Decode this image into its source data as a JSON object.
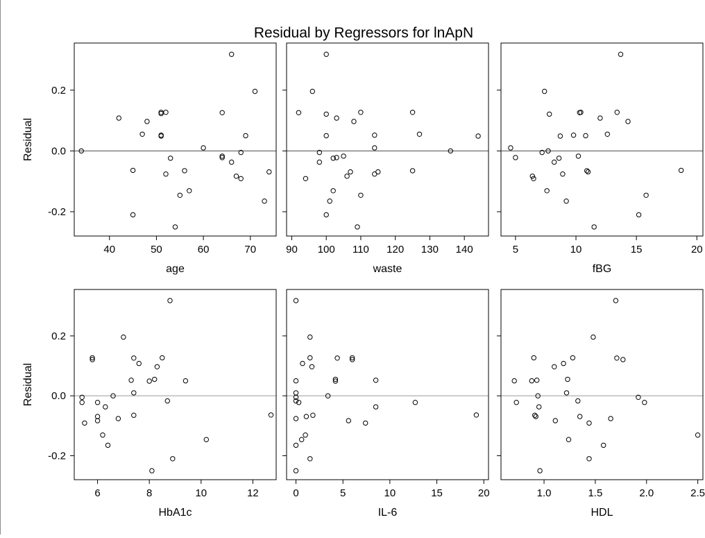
{
  "title": "Residual by Regressors for lnApN",
  "colors": {
    "marker": "#000000",
    "frame": "#000000",
    "ref_line_top": "#777777",
    "ref_line_bottom": "#b4b4b4",
    "background": "#ffffff"
  },
  "chart_data": [
    {
      "type": "scatter",
      "title": "",
      "xlabel": "age",
      "ylabel": "Residual",
      "xlim": [
        32.5,
        75.5
      ],
      "ylim": [
        -0.28,
        0.355
      ],
      "xticks": [
        40,
        50,
        60,
        70
      ],
      "yticks": [
        -0.2,
        0.0,
        0.2
      ],
      "ytick_labels": [
        "-0.2",
        "0.0",
        "0.2"
      ],
      "reference_line": 0,
      "points": [
        [
          34,
          0.0
        ],
        [
          42,
          0.108
        ],
        [
          45,
          -0.064
        ],
        [
          45,
          -0.21
        ],
        [
          47,
          0.055
        ],
        [
          48,
          0.097
        ],
        [
          51,
          0.123
        ],
        [
          51,
          0.127
        ],
        [
          51,
          0.052
        ],
        [
          51,
          0.049
        ],
        [
          52,
          0.127
        ],
        [
          52,
          -0.076
        ],
        [
          53,
          -0.024
        ],
        [
          54,
          -0.25
        ],
        [
          55,
          -0.146
        ],
        [
          56,
          -0.065
        ],
        [
          57,
          -0.131
        ],
        [
          60,
          0.01
        ],
        [
          64,
          0.126
        ],
        [
          64,
          -0.017
        ],
        [
          64,
          -0.022
        ],
        [
          66,
          -0.037
        ],
        [
          66,
          0.318
        ],
        [
          67,
          -0.083
        ],
        [
          68,
          -0.091
        ],
        [
          68,
          -0.005
        ],
        [
          69,
          0.05
        ],
        [
          71,
          0.196
        ],
        [
          73,
          -0.165
        ],
        [
          74,
          -0.069
        ]
      ]
    },
    {
      "type": "scatter",
      "title": "",
      "xlabel": "waste",
      "ylabel": "",
      "xlim": [
        88.5,
        147
      ],
      "ylim": [
        -0.28,
        0.355
      ],
      "xticks": [
        90,
        100,
        110,
        120,
        130,
        140
      ],
      "yticks": [
        -0.2,
        0.0,
        0.2
      ],
      "ytick_labels": [],
      "reference_line": 0,
      "points": [
        [
          92,
          0.126
        ],
        [
          94,
          -0.091
        ],
        [
          96,
          0.196
        ],
        [
          98,
          -0.005
        ],
        [
          98,
          -0.037
        ],
        [
          100,
          0.318
        ],
        [
          100,
          0.121
        ],
        [
          100,
          0.05
        ],
        [
          100,
          -0.21
        ],
        [
          101,
          -0.165
        ],
        [
          102,
          -0.024
        ],
        [
          102,
          -0.131
        ],
        [
          103,
          0.108
        ],
        [
          103,
          -0.022
        ],
        [
          105,
          -0.017
        ],
        [
          106,
          -0.083
        ],
        [
          107,
          -0.069
        ],
        [
          108,
          0.097
        ],
        [
          109,
          -0.25
        ],
        [
          110,
          0.127
        ],
        [
          110,
          -0.146
        ],
        [
          114,
          0.052
        ],
        [
          114,
          0.01
        ],
        [
          114,
          -0.076
        ],
        [
          115,
          -0.069
        ],
        [
          125,
          0.127
        ],
        [
          125,
          -0.065
        ],
        [
          127,
          0.055
        ],
        [
          136,
          0.0
        ],
        [
          144,
          0.049
        ]
      ]
    },
    {
      "type": "scatter",
      "title": "",
      "xlabel": "fBG",
      "ylabel": "",
      "xlim": [
        3.8,
        20.5
      ],
      "ylim": [
        -0.28,
        0.355
      ],
      "xticks": [
        5,
        10,
        15,
        20
      ],
      "yticks": [
        -0.2,
        0.0,
        0.2
      ],
      "ytick_labels": [],
      "reference_line": 0,
      "points": [
        [
          4.6,
          0.01
        ],
        [
          5.0,
          -0.022
        ],
        [
          6.4,
          -0.083
        ],
        [
          6.5,
          -0.091
        ],
        [
          7.2,
          -0.005
        ],
        [
          7.4,
          0.196
        ],
        [
          7.6,
          -0.131
        ],
        [
          7.7,
          0.0
        ],
        [
          7.8,
          0.121
        ],
        [
          8.2,
          -0.037
        ],
        [
          8.6,
          -0.024
        ],
        [
          8.7,
          0.049
        ],
        [
          8.9,
          -0.076
        ],
        [
          9.2,
          -0.165
        ],
        [
          9.8,
          0.052
        ],
        [
          10.2,
          -0.017
        ],
        [
          10.3,
          0.126
        ],
        [
          10.4,
          0.127
        ],
        [
          10.8,
          0.05
        ],
        [
          10.9,
          -0.065
        ],
        [
          11.0,
          -0.069
        ],
        [
          11.5,
          -0.25
        ],
        [
          12.0,
          0.108
        ],
        [
          12.6,
          0.055
        ],
        [
          13.4,
          0.127
        ],
        [
          13.7,
          0.318
        ],
        [
          14.3,
          0.097
        ],
        [
          15.2,
          -0.21
        ],
        [
          15.8,
          -0.146
        ],
        [
          18.7,
          -0.064
        ]
      ]
    },
    {
      "type": "scatter",
      "title": "",
      "xlabel": "HbA1c",
      "ylabel": "Residual",
      "xlim": [
        5.1,
        12.9
      ],
      "ylim": [
        -0.28,
        0.355
      ],
      "xticks": [
        6,
        8,
        10,
        12
      ],
      "yticks": [
        -0.2,
        0.0,
        0.2
      ],
      "ytick_labels": [
        "-0.2",
        "0.0",
        "0.2"
      ],
      "reference_line": 0,
      "points": [
        [
          5.4,
          -0.005
        ],
        [
          5.4,
          -0.022
        ],
        [
          5.5,
          -0.091
        ],
        [
          5.8,
          0.121
        ],
        [
          5.8,
          0.127
        ],
        [
          6.0,
          -0.022
        ],
        [
          6.0,
          -0.069
        ],
        [
          6.0,
          -0.083
        ],
        [
          6.2,
          -0.131
        ],
        [
          6.3,
          -0.037
        ],
        [
          6.4,
          -0.165
        ],
        [
          6.6,
          0.0
        ],
        [
          6.8,
          -0.076
        ],
        [
          7.0,
          0.196
        ],
        [
          7.3,
          0.052
        ],
        [
          7.4,
          0.126
        ],
        [
          7.4,
          0.01
        ],
        [
          7.4,
          -0.065
        ],
        [
          7.6,
          0.108
        ],
        [
          8.0,
          0.049
        ],
        [
          8.1,
          -0.25
        ],
        [
          8.2,
          0.055
        ],
        [
          8.3,
          0.097
        ],
        [
          8.5,
          0.127
        ],
        [
          8.7,
          -0.017
        ],
        [
          8.8,
          0.318
        ],
        [
          8.9,
          -0.21
        ],
        [
          9.4,
          0.05
        ],
        [
          10.2,
          -0.146
        ],
        [
          12.7,
          -0.064
        ]
      ]
    },
    {
      "type": "scatter",
      "title": "",
      "xlabel": "IL-6",
      "ylabel": "",
      "xlim": [
        -1.0,
        20.5
      ],
      "ylim": [
        -0.28,
        0.355
      ],
      "xticks": [
        0,
        5,
        10,
        15,
        20
      ],
      "yticks": [
        -0.2,
        0.0,
        0.2
      ],
      "ytick_labels": [],
      "reference_line": 0,
      "points": [
        [
          0.0,
          0.318
        ],
        [
          0.0,
          0.05
        ],
        [
          0.0,
          0.01
        ],
        [
          0.0,
          -0.005
        ],
        [
          0.0,
          -0.017
        ],
        [
          0.0,
          -0.076
        ],
        [
          0.0,
          -0.165
        ],
        [
          0.0,
          -0.25
        ],
        [
          0.3,
          -0.022
        ],
        [
          0.6,
          -0.146
        ],
        [
          0.7,
          0.108
        ],
        [
          1.0,
          -0.131
        ],
        [
          1.1,
          -0.069
        ],
        [
          1.5,
          0.196
        ],
        [
          1.5,
          0.127
        ],
        [
          1.5,
          -0.21
        ],
        [
          1.7,
          0.097
        ],
        [
          1.8,
          -0.065
        ],
        [
          3.4,
          0.0
        ],
        [
          4.2,
          0.055
        ],
        [
          4.2,
          0.049
        ],
        [
          4.4,
          0.126
        ],
        [
          5.6,
          -0.083
        ],
        [
          6.0,
          0.127
        ],
        [
          6.0,
          0.121
        ],
        [
          7.4,
          -0.091
        ],
        [
          8.5,
          0.052
        ],
        [
          8.5,
          -0.037
        ],
        [
          12.7,
          -0.022
        ],
        [
          19.2,
          -0.064
        ]
      ]
    },
    {
      "type": "scatter",
      "title": "",
      "xlabel": "HDL",
      "ylabel": "",
      "xlim": [
        0.58,
        2.55
      ],
      "ylim": [
        -0.28,
        0.355
      ],
      "xticks": [
        1.0,
        1.5,
        2.0,
        2.5
      ],
      "xtick_labels": [
        "1.0",
        "1.5",
        "2.0",
        "2.5"
      ],
      "yticks": [
        -0.2,
        0.0,
        0.2
      ],
      "ytick_labels": [],
      "reference_line": 0,
      "points": [
        [
          0.71,
          0.05
        ],
        [
          0.73,
          -0.022
        ],
        [
          0.88,
          0.05
        ],
        [
          0.9,
          0.127
        ],
        [
          0.91,
          -0.065
        ],
        [
          0.92,
          -0.069
        ],
        [
          0.93,
          0.052
        ],
        [
          0.94,
          0.0
        ],
        [
          0.95,
          -0.037
        ],
        [
          0.96,
          -0.25
        ],
        [
          1.1,
          0.097
        ],
        [
          1.11,
          -0.083
        ],
        [
          1.19,
          0.108
        ],
        [
          1.22,
          0.01
        ],
        [
          1.23,
          0.055
        ],
        [
          1.24,
          -0.146
        ],
        [
          1.28,
          0.127
        ],
        [
          1.33,
          -0.017
        ],
        [
          1.35,
          -0.069
        ],
        [
          1.44,
          -0.21
        ],
        [
          1.44,
          -0.091
        ],
        [
          1.48,
          0.196
        ],
        [
          1.58,
          -0.165
        ],
        [
          1.65,
          -0.076
        ],
        [
          1.7,
          0.318
        ],
        [
          1.71,
          0.126
        ],
        [
          1.77,
          0.121
        ],
        [
          1.92,
          -0.005
        ],
        [
          1.98,
          -0.022
        ],
        [
          2.5,
          -0.131
        ]
      ]
    }
  ]
}
